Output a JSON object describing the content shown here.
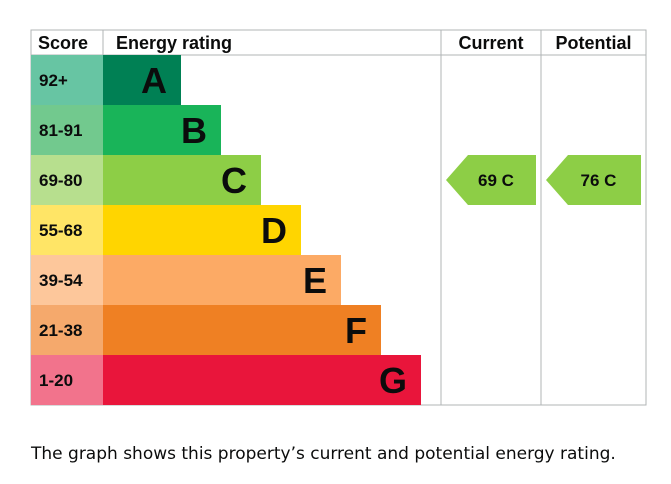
{
  "chart_data": {
    "type": "bar",
    "headers": {
      "score": "Score",
      "rating": "Energy rating",
      "current": "Current",
      "potential": "Potential"
    },
    "bands": [
      {
        "score": "92+",
        "letter": "A",
        "bar_color": "#008054",
        "score_bg": "#67c5a3"
      },
      {
        "score": "81-91",
        "letter": "B",
        "bar_color": "#19b459",
        "score_bg": "#72c98e"
      },
      {
        "score": "69-80",
        "letter": "C",
        "bar_color": "#8dce46",
        "score_bg": "#b7df8e"
      },
      {
        "score": "55-68",
        "letter": "D",
        "bar_color": "#ffd500",
        "score_bg": "#ffe566"
      },
      {
        "score": "39-54",
        "letter": "E",
        "bar_color": "#fcaa65",
        "score_bg": "#fdc79b"
      },
      {
        "score": "21-38",
        "letter": "F",
        "bar_color": "#ef8023",
        "score_bg": "#f5a96c"
      },
      {
        "score": "1-20",
        "letter": "G",
        "bar_color": "#e9153b",
        "score_bg": "#f2738c"
      }
    ],
    "current": {
      "value": 69,
      "band": "C",
      "label": "69 C",
      "color": "#8dce46"
    },
    "potential": {
      "value": 76,
      "band": "C",
      "label": "76 C",
      "color": "#8dce46"
    }
  },
  "caption": "The graph shows this property’s current and potential energy rating."
}
